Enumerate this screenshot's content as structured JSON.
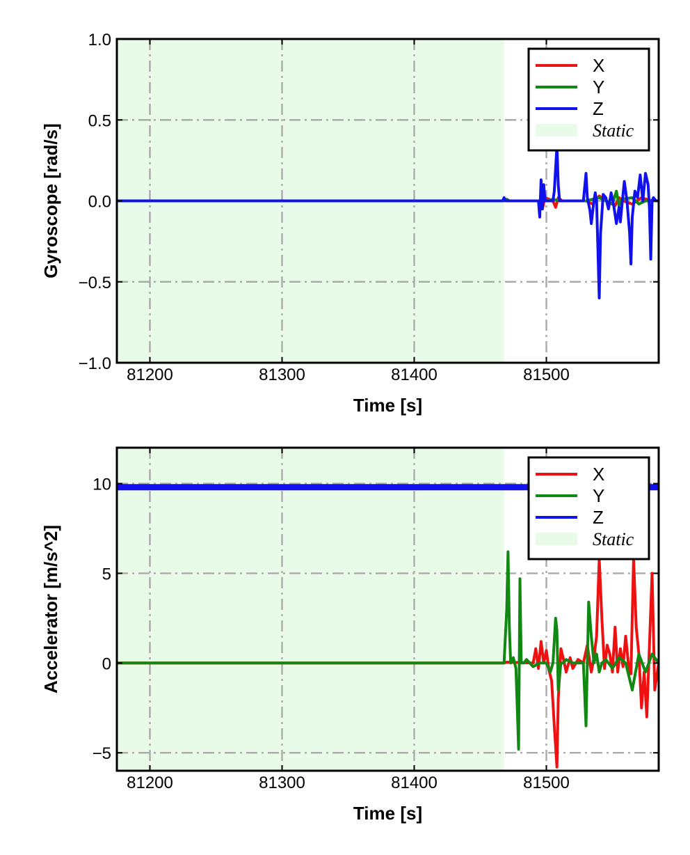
{
  "chart_data": [
    {
      "type": "line",
      "xlabel": "Time [s]",
      "ylabel": "Gyroscope [rad/s]",
      "xlim": [
        81175,
        81585
      ],
      "ylim": [
        -1.0,
        1.0
      ],
      "xticks": [
        81200,
        81300,
        81400,
        81500
      ],
      "yticks": [
        -1.0,
        -0.5,
        0.0,
        0.5,
        1.0
      ],
      "xtick_labels": [
        "81200",
        "81300",
        "81400",
        "81500"
      ],
      "ytick_labels": [
        "−1.0",
        "−0.5",
        "0.0",
        "0.5",
        "1.0"
      ],
      "grid": true,
      "legend_position": "top-right",
      "static_region": {
        "label": "Static",
        "x_start": 81175,
        "x_end": 81468,
        "color": "#e8fbe8"
      },
      "series": [
        {
          "name": "X",
          "color": "#ee1111",
          "x": [
            81175,
            81468,
            81470,
            81472,
            81495,
            81497,
            81499,
            81505,
            81507,
            81509,
            81512,
            81530,
            81535,
            81540,
            81545,
            81552,
            81555,
            81558,
            81565,
            81572,
            81580,
            81585
          ],
          "y": [
            0.0,
            0.0,
            0.01,
            0.0,
            0.0,
            -0.05,
            0.02,
            0.0,
            -0.04,
            0.02,
            0.0,
            0.0,
            -0.02,
            0.03,
            0.0,
            -0.03,
            0.02,
            0.0,
            -0.02,
            0.02,
            0.0,
            0.0
          ]
        },
        {
          "name": "Y",
          "color": "#118811",
          "x": [
            81175,
            81468,
            81470,
            81472,
            81500,
            81505,
            81510,
            81530,
            81540,
            81550,
            81553,
            81555,
            81557,
            81565,
            81570,
            81575,
            81585
          ],
          "y": [
            0.0,
            0.0,
            0.01,
            0.0,
            0.0,
            0.01,
            0.0,
            0.0,
            0.02,
            -0.02,
            0.06,
            -0.03,
            0.01,
            0.02,
            -0.02,
            0.0,
            0.0
          ]
        },
        {
          "name": "Z",
          "color": "#1111ee",
          "x": [
            81175,
            81467,
            81468,
            81469,
            81470,
            81494,
            81495,
            81496,
            81497,
            81498,
            81499,
            81505,
            81506,
            81507,
            81508,
            81509,
            81510,
            81512,
            81528,
            81530,
            81531,
            81533,
            81534,
            81536,
            81537,
            81538,
            81539,
            81540,
            81541,
            81543,
            81545,
            81547,
            81549,
            81551,
            81553,
            81555,
            81556,
            81558,
            81559,
            81561,
            81563,
            81564,
            81565,
            81567,
            81569,
            81571,
            81573,
            81575,
            81577,
            81578,
            81579,
            81580,
            81581,
            81583,
            81585
          ],
          "y": [
            0.0,
            0.0,
            0.02,
            0.0,
            0.0,
            0.0,
            -0.1,
            0.13,
            -0.05,
            0.1,
            0.0,
            0.0,
            0.06,
            0.2,
            0.34,
            0.1,
            0.0,
            0.0,
            0.0,
            0.17,
            0.02,
            -0.06,
            -0.14,
            0.0,
            0.05,
            0.0,
            -0.3,
            -0.6,
            -0.2,
            0.04,
            0.02,
            -0.05,
            0.05,
            -0.03,
            -0.14,
            -0.04,
            -0.13,
            0.04,
            0.12,
            0.0,
            -0.2,
            -0.39,
            -0.1,
            0.06,
            0.02,
            0.16,
            0.0,
            0.17,
            0.1,
            -0.05,
            -0.36,
            0.0,
            0.02,
            0.0,
            0.0
          ]
        }
      ]
    },
    {
      "type": "line",
      "xlabel": "Time [s]",
      "ylabel": "Accelerator [m/s^2]",
      "xlim": [
        81175,
        81585
      ],
      "ylim": [
        -6,
        12
      ],
      "xticks": [
        81200,
        81300,
        81400,
        81500
      ],
      "yticks": [
        -5,
        0,
        5,
        10
      ],
      "xtick_labels": [
        "81200",
        "81300",
        "81400",
        "81500"
      ],
      "ytick_labels": [
        "−5",
        "0",
        "5",
        "10"
      ],
      "grid": true,
      "legend_position": "top-right",
      "static_region": {
        "label": "Static",
        "x_start": 81175,
        "x_end": 81468,
        "color": "#e8fbe8"
      },
      "series": [
        {
          "name": "X",
          "color": "#ee1111",
          "x": [
            81175,
            81468,
            81470,
            81490,
            81492,
            81494,
            81496,
            81498,
            81500,
            81502,
            81504,
            81506,
            81508,
            81509,
            81511,
            81513,
            81515,
            81518,
            81520,
            81524,
            81528,
            81531,
            81534,
            81536,
            81538,
            81540,
            81542,
            81544,
            81546,
            81548,
            81550,
            81552,
            81554,
            81556,
            81558,
            81560,
            81562,
            81564,
            81566,
            81568,
            81570,
            81572,
            81574,
            81576,
            81578,
            81580,
            81582,
            81585
          ],
          "y": [
            0.0,
            0.0,
            0.05,
            0.0,
            0.8,
            -0.3,
            1.2,
            0.0,
            0.7,
            -0.4,
            -1.0,
            -3.5,
            -5.8,
            -2.0,
            0.8,
            0.2,
            -0.5,
            0.3,
            -0.3,
            0.2,
            0.0,
            1.0,
            -0.5,
            0.3,
            1.5,
            5.8,
            2.5,
            -0.3,
            1.0,
            0.5,
            -0.5,
            2.0,
            -0.5,
            0.8,
            -0.2,
            1.5,
            0.0,
            -0.6,
            5.8,
            2.0,
            0.5,
            -2.5,
            -0.5,
            -3.0,
            1.0,
            5.0,
            -1.5,
            0.0
          ]
        },
        {
          "name": "Y",
          "color": "#118811",
          "x": [
            81175,
            81467,
            81468,
            81470,
            81471,
            81472,
            81473,
            81475,
            81477,
            81479,
            81480,
            81481,
            81483,
            81485,
            81490,
            81495,
            81500,
            81503,
            81505,
            81507,
            81508,
            81509,
            81511,
            81513,
            81515,
            81520,
            81525,
            81528,
            81530,
            81531,
            81532,
            81534,
            81536,
            81538,
            81540,
            81542,
            81545,
            81550,
            81555,
            81560,
            81565,
            81570,
            81575,
            81580,
            81585
          ],
          "y": [
            0.0,
            0.0,
            0.0,
            3.0,
            6.2,
            2.0,
            0.0,
            0.3,
            -0.3,
            -4.8,
            4.7,
            0.0,
            0.0,
            0.2,
            -0.2,
            0.0,
            0.0,
            -0.5,
            0.0,
            2.5,
            1.8,
            -1.5,
            0.0,
            0.0,
            0.2,
            0.0,
            0.0,
            0.0,
            -3.5,
            0.0,
            3.4,
            1.5,
            0.0,
            0.5,
            -0.5,
            0.0,
            0.2,
            -0.3,
            0.3,
            0.0,
            -1.5,
            0.5,
            -0.5,
            0.5,
            0.0
          ]
        },
        {
          "name": "Z",
          "color": "#1111ee",
          "x": [
            81175,
            81585
          ],
          "y": [
            9.8,
            9.8
          ]
        }
      ]
    }
  ]
}
